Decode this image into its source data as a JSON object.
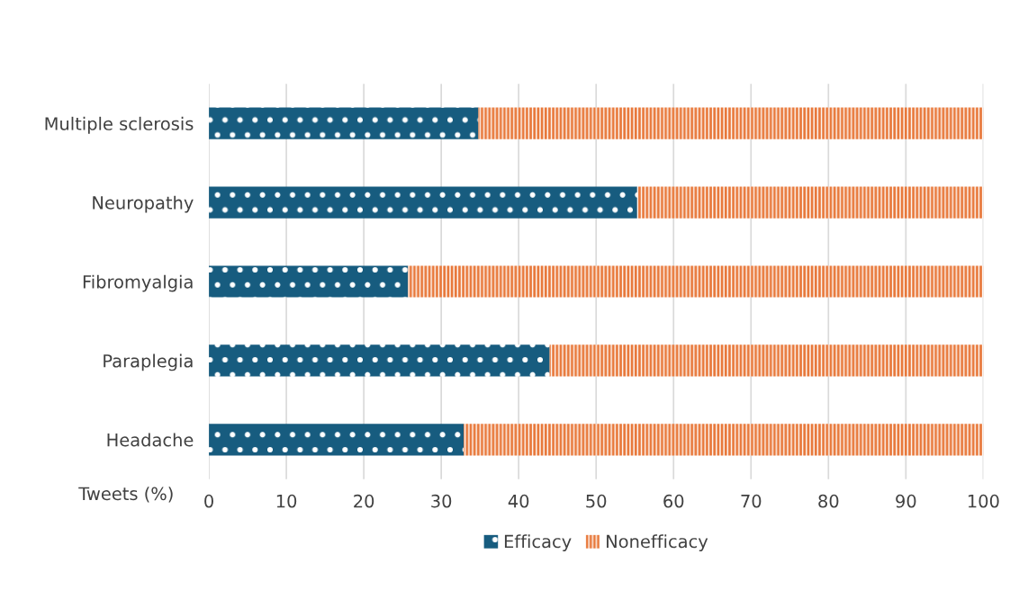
{
  "chart_data": {
    "type": "bar",
    "orientation": "horizontal",
    "stacked": true,
    "xlabel": "Tweets (%)",
    "categories": [
      "Multiple sclerosis",
      "Neuropathy",
      "Fibromyalgia",
      "Paraplegia",
      "Headache"
    ],
    "series": [
      {
        "name": "Efficacy",
        "color": "#175c7f",
        "values": [
          34.8,
          55.3,
          25.7,
          44.0,
          32.9
        ]
      },
      {
        "name": "Nonefficacy",
        "color": "#e8783a",
        "values": [
          65.2,
          44.7,
          74.3,
          56.0,
          67.1
        ]
      }
    ],
    "xlim": [
      0,
      100
    ],
    "xticks": [
      0,
      10,
      20,
      30,
      40,
      50,
      60,
      70,
      80,
      90,
      100
    ],
    "grid": "x",
    "legend": "bottom"
  }
}
